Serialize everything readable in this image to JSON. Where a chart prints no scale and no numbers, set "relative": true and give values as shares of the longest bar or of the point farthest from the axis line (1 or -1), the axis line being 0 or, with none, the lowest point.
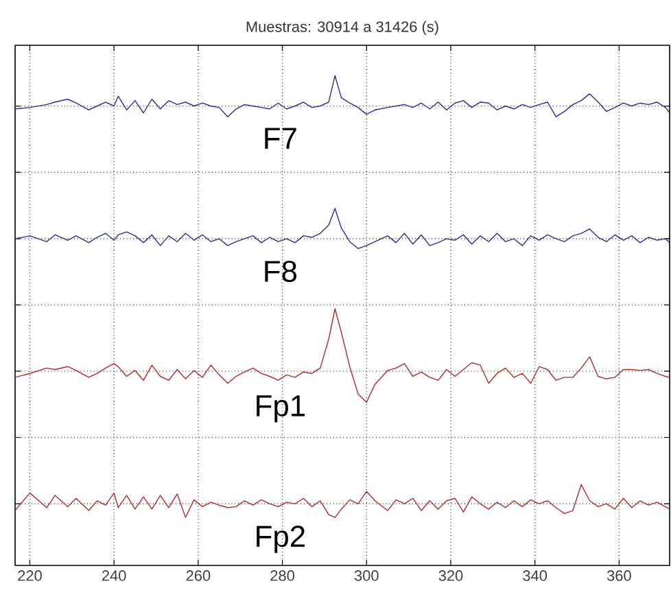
{
  "chart_data": {
    "type": "line",
    "title": "Muestras: 30914 a 31426 (s)",
    "relative": true,
    "grid": true,
    "tick_labels": "x",
    "marker": "none",
    "line_style": "solid",
    "xlim": [
      216.5,
      372
    ],
    "xticks": [
      220,
      240,
      260,
      280,
      300,
      320,
      340,
      360
    ],
    "x": [
      216.5,
      220,
      224,
      226,
      229,
      231,
      234,
      236,
      238,
      240,
      241,
      243,
      245,
      247,
      249,
      251,
      253,
      255,
      257,
      259,
      261,
      263,
      265,
      267,
      269,
      271,
      273,
      275,
      277,
      279,
      281,
      283,
      285,
      287,
      289,
      291,
      292.5,
      294,
      296,
      298,
      300,
      302,
      305,
      307,
      309,
      311,
      313,
      315,
      317,
      319,
      321,
      323,
      325,
      327,
      329,
      331,
      333,
      335,
      337,
      339,
      341,
      343,
      345,
      347,
      349,
      351,
      353,
      355,
      357,
      359,
      361,
      363,
      365,
      367,
      369,
      371,
      372
    ],
    "series": [
      {
        "name": "F7",
        "color": "#2a2a9a",
        "values": [
          0.932,
          0.935,
          0.941,
          0.946,
          0.952,
          0.944,
          0.93,
          0.938,
          0.946,
          0.938,
          0.958,
          0.93,
          0.949,
          0.924,
          0.952,
          0.932,
          0.949,
          0.941,
          0.946,
          0.938,
          0.944,
          0.938,
          0.935,
          0.916,
          0.932,
          0.941,
          0.938,
          0.935,
          0.932,
          0.944,
          0.932,
          0.938,
          0.946,
          0.935,
          0.938,
          0.946,
          1.0,
          0.955,
          0.944,
          0.935,
          0.921,
          0.93,
          0.935,
          0.938,
          0.941,
          0.935,
          0.944,
          0.932,
          0.946,
          0.93,
          0.944,
          0.949,
          0.935,
          0.946,
          0.944,
          0.93,
          0.938,
          0.932,
          0.941,
          0.935,
          0.941,
          0.946,
          0.916,
          0.927,
          0.941,
          0.949,
          0.963,
          0.946,
          0.927,
          0.935,
          0.944,
          0.938,
          0.944,
          0.941,
          0.946,
          0.935,
          0.924
        ]
      },
      {
        "name": "F8",
        "color": "#2a2a9a",
        "values": [
          0.667,
          0.673,
          0.661,
          0.675,
          0.664,
          0.673,
          0.659,
          0.67,
          0.678,
          0.664,
          0.675,
          0.681,
          0.673,
          0.659,
          0.675,
          0.653,
          0.673,
          0.661,
          0.678,
          0.664,
          0.675,
          0.661,
          0.667,
          0.653,
          0.661,
          0.667,
          0.673,
          0.659,
          0.67,
          0.661,
          0.667,
          0.659,
          0.673,
          0.67,
          0.678,
          0.695,
          0.729,
          0.689,
          0.661,
          0.647,
          0.653,
          0.661,
          0.673,
          0.659,
          0.678,
          0.656,
          0.675,
          0.653,
          0.659,
          0.667,
          0.664,
          0.675,
          0.656,
          0.673,
          0.661,
          0.678,
          0.661,
          0.667,
          0.653,
          0.673,
          0.664,
          0.675,
          0.667,
          0.661,
          0.673,
          0.678,
          0.687,
          0.67,
          0.661,
          0.675,
          0.664,
          0.673,
          0.659,
          0.67,
          0.664,
          0.667,
          0.659
        ]
      },
      {
        "name": "Fp1",
        "color": "#b02a2a",
        "values": [
          0.384,
          0.392,
          0.403,
          0.4,
          0.406,
          0.398,
          0.384,
          0.392,
          0.403,
          0.412,
          0.406,
          0.386,
          0.398,
          0.378,
          0.409,
          0.386,
          0.378,
          0.4,
          0.381,
          0.398,
          0.384,
          0.409,
          0.389,
          0.372,
          0.386,
          0.395,
          0.403,
          0.392,
          0.386,
          0.378,
          0.389,
          0.384,
          0.395,
          0.392,
          0.403,
          0.462,
          0.524,
          0.476,
          0.406,
          0.35,
          0.333,
          0.37,
          0.398,
          0.403,
          0.412,
          0.386,
          0.395,
          0.384,
          0.378,
          0.4,
          0.386,
          0.4,
          0.414,
          0.409,
          0.372,
          0.392,
          0.403,
          0.384,
          0.392,
          0.372,
          0.406,
          0.4,
          0.378,
          0.384,
          0.384,
          0.403,
          0.426,
          0.386,
          0.381,
          0.384,
          0.4,
          0.4,
          0.398,
          0.4,
          0.392,
          0.386,
          0.384
        ]
      },
      {
        "name": "Fp2",
        "color": "#b02a2a",
        "values": [
          0.112,
          0.148,
          0.118,
          0.143,
          0.12,
          0.137,
          0.112,
          0.132,
          0.123,
          0.148,
          0.118,
          0.143,
          0.115,
          0.14,
          0.115,
          0.143,
          0.118,
          0.146,
          0.098,
          0.134,
          0.12,
          0.129,
          0.123,
          0.118,
          0.12,
          0.132,
          0.123,
          0.134,
          0.126,
          0.12,
          0.129,
          0.126,
          0.137,
          0.12,
          0.132,
          0.104,
          0.098,
          0.115,
          0.134,
          0.126,
          0.151,
          0.132,
          0.112,
          0.134,
          0.126,
          0.137,
          0.112,
          0.132,
          0.115,
          0.132,
          0.137,
          0.109,
          0.14,
          0.126,
          0.115,
          0.129,
          0.118,
          0.132,
          0.12,
          0.134,
          0.126,
          0.132,
          0.118,
          0.106,
          0.112,
          0.165,
          0.132,
          0.12,
          0.126,
          0.115,
          0.137,
          0.118,
          0.132,
          0.123,
          0.129,
          0.12,
          0.115
        ]
      }
    ]
  }
}
